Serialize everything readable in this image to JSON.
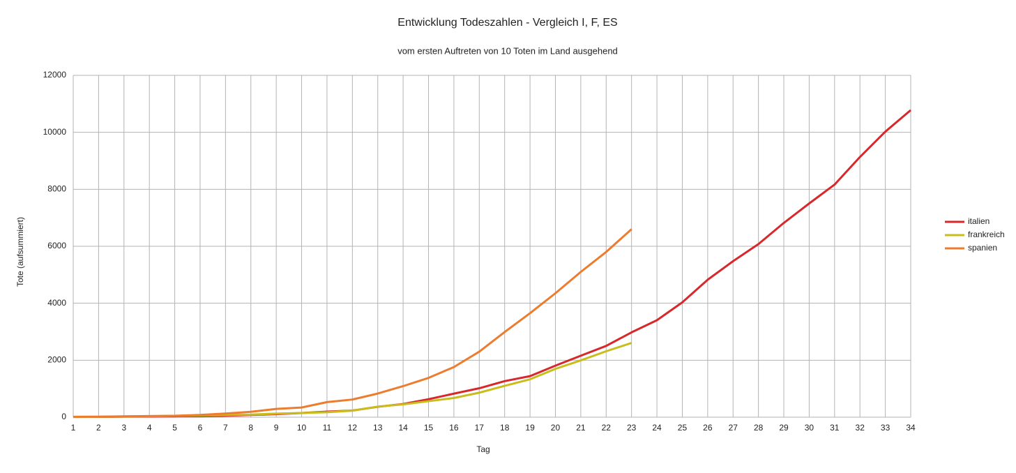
{
  "chart_data": {
    "type": "line",
    "title": "Entwicklung Todeszahlen - Vergleich I, F, ES",
    "subtitle": "vom ersten Auftreten von 10 Toten im Land ausgehend",
    "x_label": "Tag",
    "y_label": "Tote (aufsummiert)",
    "x": [
      1,
      2,
      3,
      4,
      5,
      6,
      7,
      8,
      9,
      10,
      11,
      12,
      13,
      14,
      15,
      16,
      17,
      18,
      19,
      20,
      21,
      22,
      23,
      24,
      25,
      26,
      27,
      28,
      29,
      30,
      31,
      32,
      33,
      34
    ],
    "series": [
      {
        "name": "italien",
        "color": "#d7282b",
        "values": [
          11,
          12,
          17,
          21,
          29,
          34,
          52,
          79,
          107,
          148,
          197,
          233,
          366,
          463,
          631,
          827,
          1016,
          1266,
          1441,
          1809,
          2158,
          2503,
          2978,
          3405,
          4032,
          4825,
          5476,
          6077,
          6820,
          7503,
          8165,
          9134,
          10023,
          10779
        ]
      },
      {
        "name": "frankreich",
        "color": "#c9bd1c",
        "values": [
          16,
          19,
          25,
          33,
          48,
          61,
          79,
          91,
          127,
          148,
          175,
          230,
          372,
          450,
          562,
          674,
          860,
          1100,
          1331,
          1696,
          1995,
          2314,
          2606,
          null,
          null,
          null,
          null,
          null,
          null,
          null,
          null,
          null,
          null,
          null
        ]
      },
      {
        "name": "spanien",
        "color": "#ec7c2e",
        "values": [
          10,
          15,
          30,
          40,
          50,
          80,
          130,
          190,
          290,
          340,
          530,
          620,
          830,
          1090,
          1380,
          1760,
          2300,
          2990,
          3650,
          4350,
          5100,
          5800,
          6600,
          null,
          null,
          null,
          null,
          null,
          null,
          null,
          null,
          null,
          null,
          null
        ]
      }
    ],
    "xlim": [
      1,
      34
    ],
    "xticks": [
      1,
      2,
      3,
      4,
      5,
      6,
      7,
      8,
      9,
      10,
      11,
      12,
      13,
      14,
      15,
      16,
      17,
      18,
      19,
      20,
      21,
      22,
      23,
      24,
      25,
      26,
      27,
      28,
      29,
      30,
      31,
      32,
      33,
      34
    ],
    "ylim": [
      0,
      12000
    ],
    "yticks": [
      0,
      2000,
      4000,
      6000,
      8000,
      10000,
      12000
    ],
    "grid": true,
    "legend": "right"
  }
}
